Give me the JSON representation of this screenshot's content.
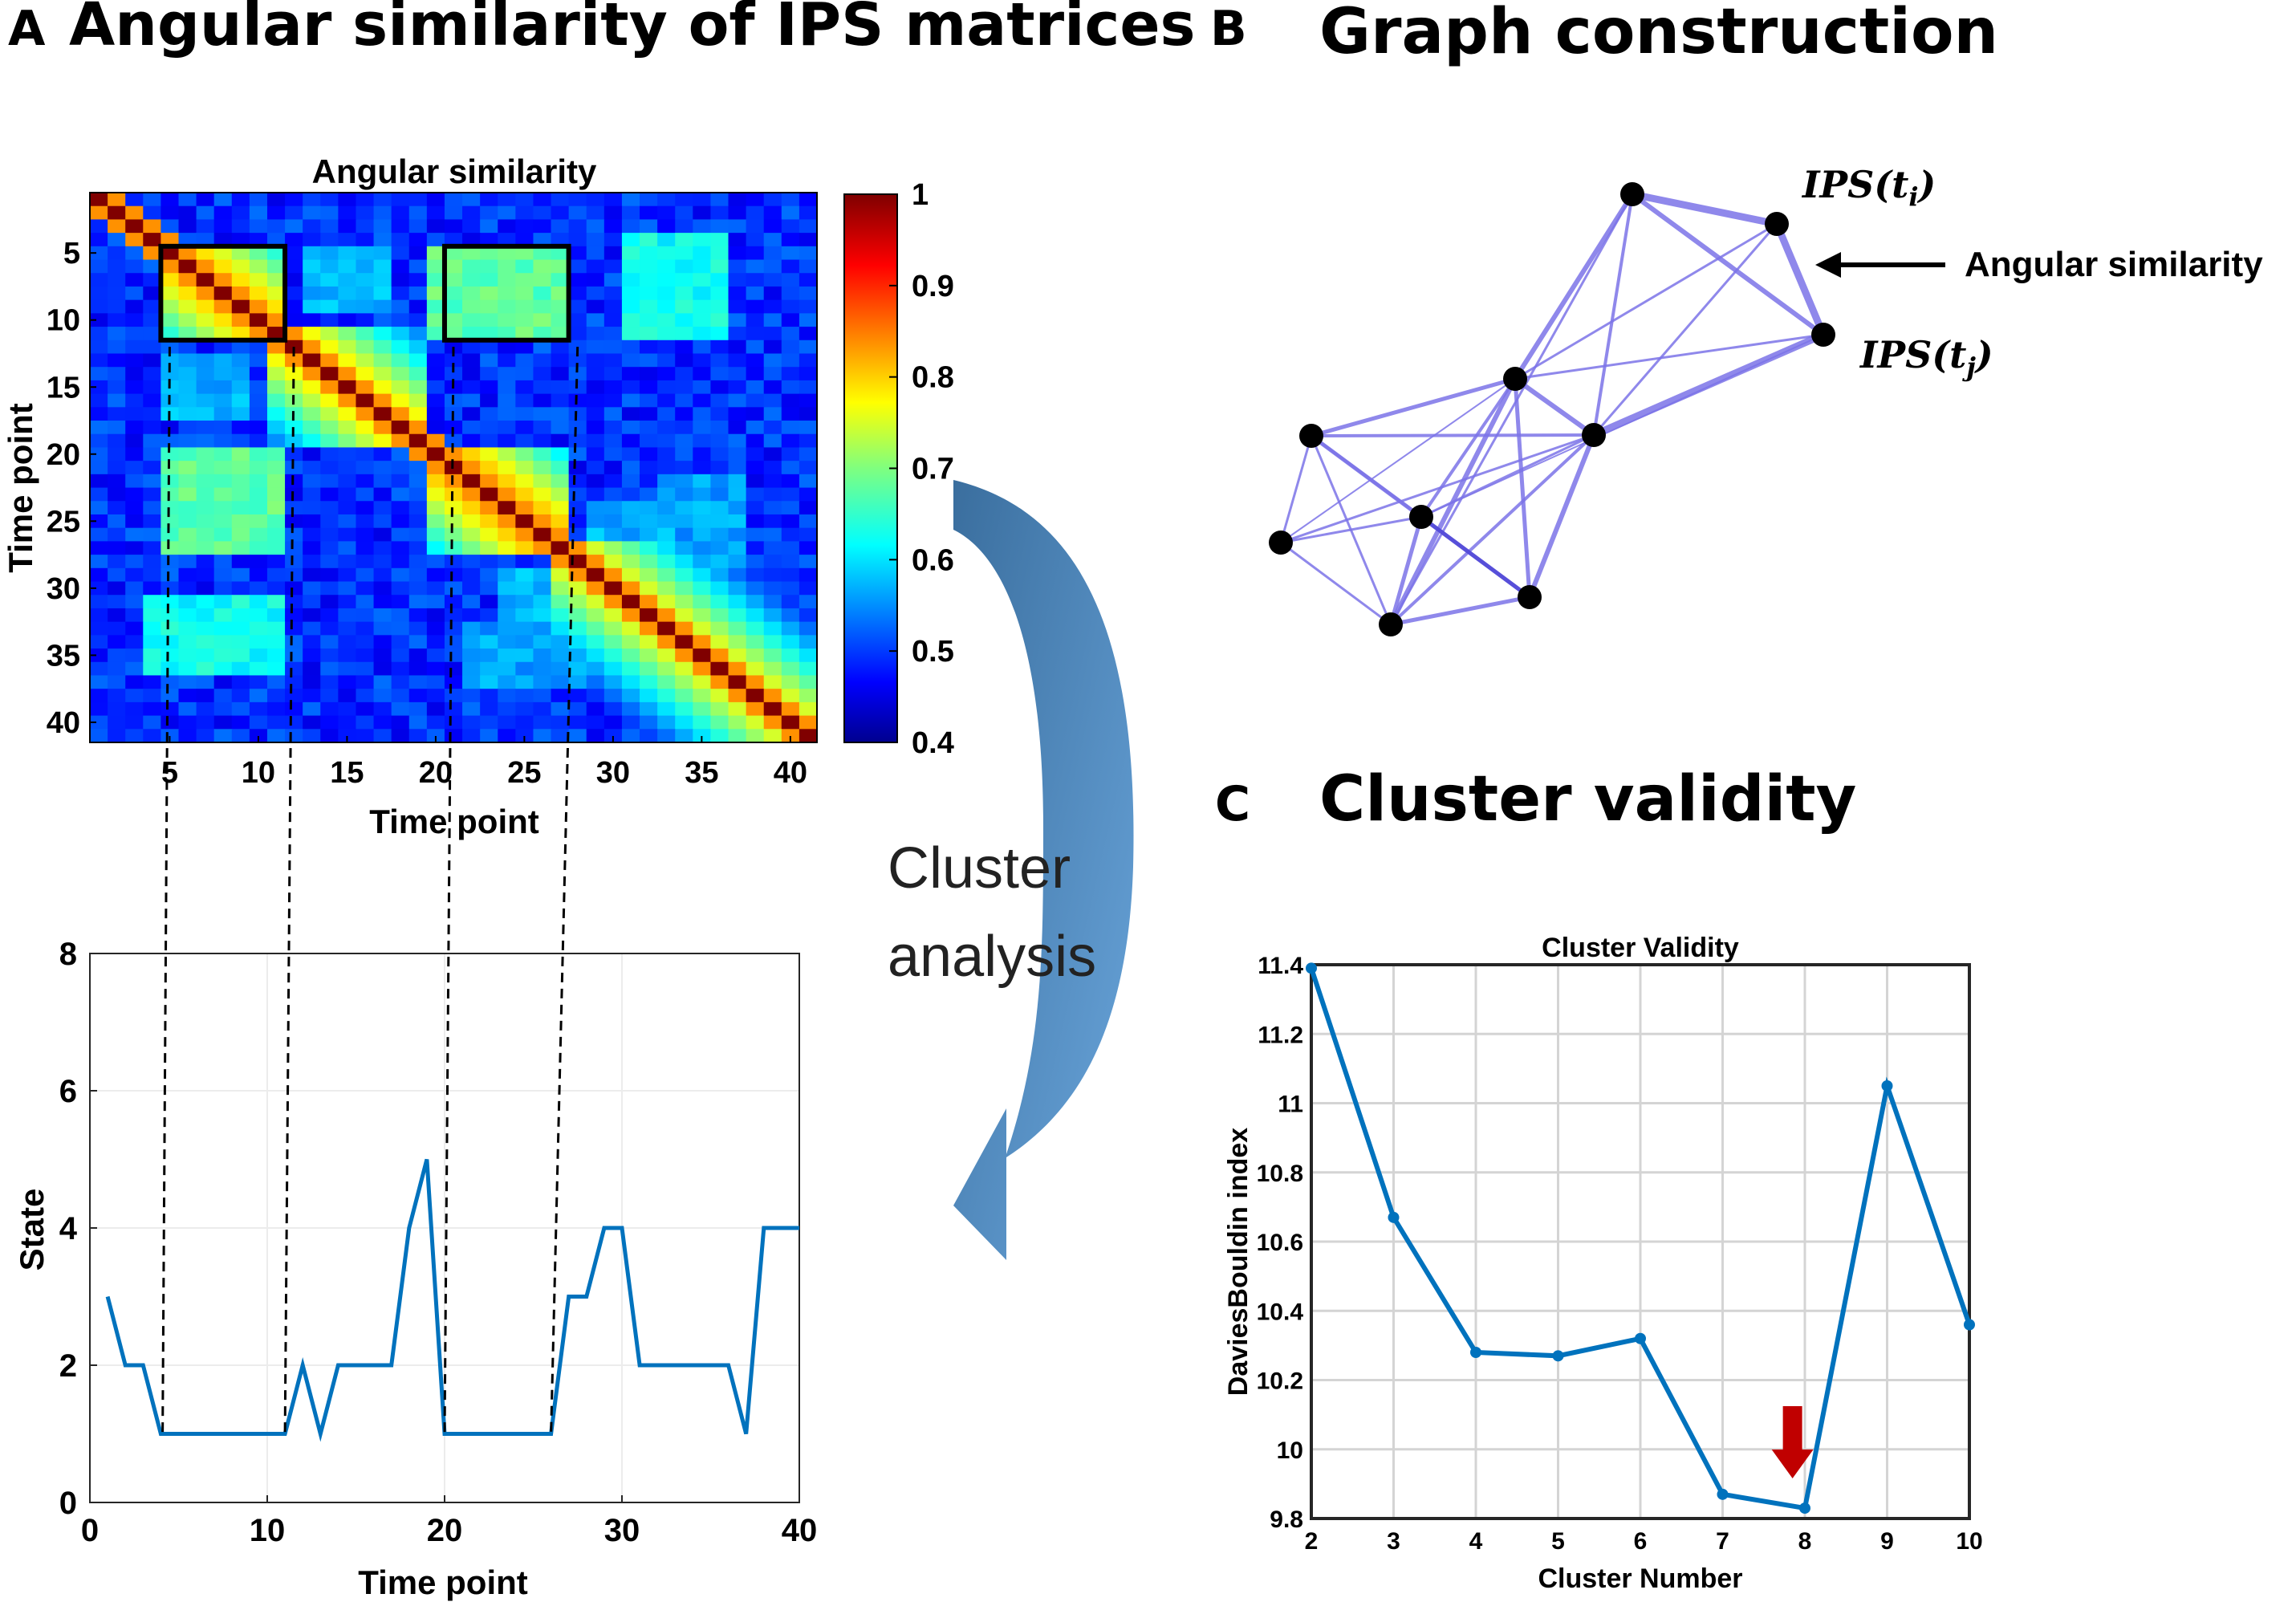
{
  "panels": {
    "a": {
      "letter": "A",
      "title": "Angular similarity of IPS matrices"
    },
    "b": {
      "letter": "B",
      "title": "Graph construction",
      "node_label_i": "IPS(t",
      "node_label_i_sub": "i",
      "node_label_j": "IPS(t",
      "node_label_j_sub": "j",
      "paren_close": ")",
      "edge_label": "Angular similarity"
    },
    "c": {
      "letter": "C",
      "title": "Cluster validity"
    }
  },
  "arrow_label": {
    "line1": "Cluster",
    "line2": "analysis"
  },
  "colors": {
    "line": "#0072BD",
    "graph_edge": "#7B73E8",
    "graph_edge_dark": "#4E45D6",
    "red_arrow": "#C00000",
    "curved_arrow": "#4A80B8"
  },
  "chart_data": [
    {
      "id": "heatmap",
      "type": "heatmap",
      "title": "Angular similarity",
      "xlabel": "Time point",
      "ylabel": "Time point",
      "size": 41,
      "xticks": [
        5,
        10,
        15,
        20,
        25,
        30,
        35,
        40
      ],
      "yticks": [
        5,
        10,
        15,
        20,
        25,
        30,
        35,
        40
      ],
      "clim": [
        0.4,
        1
      ],
      "colorbar_ticks": [
        "0.4",
        "0.5",
        "0.6",
        "0.7",
        "0.8",
        "0.9",
        "1"
      ],
      "colorbar_values": [
        0.4,
        0.5,
        0.6,
        0.7,
        0.8,
        0.9,
        1
      ],
      "diagonal_value": 1.0,
      "background_value": 0.5,
      "blocks": [
        {
          "rows": [
            5,
            11
          ],
          "cols": [
            5,
            11
          ],
          "value": 0.86
        },
        {
          "rows": [
            11,
            19
          ],
          "cols": [
            11,
            19
          ],
          "value": 0.84
        },
        {
          "rows": [
            20,
            27
          ],
          "cols": [
            20,
            27
          ],
          "value": 0.87
        },
        {
          "rows": [
            27,
            41
          ],
          "cols": [
            27,
            41
          ],
          "value": 0.82
        }
      ],
      "offdiag_patches": [
        {
          "rows": [
            5,
            11
          ],
          "cols": [
            20,
            27
          ],
          "value": 0.68
        },
        {
          "rows": [
            4,
            11
          ],
          "cols": [
            31,
            35
          ],
          "value": 0.62
        },
        {
          "rows": [
            22,
            27
          ],
          "cols": [
            5,
            11
          ],
          "value": 0.66
        },
        {
          "rows": [
            31,
            36
          ],
          "cols": [
            4,
            11
          ],
          "value": 0.63
        },
        {
          "rows": [
            13,
            17
          ],
          "cols": [
            5,
            9
          ],
          "value": 0.58
        },
        {
          "rows": [
            24,
            28
          ],
          "cols": [
            29,
            33
          ],
          "value": 0.58
        },
        {
          "rows": [
            33,
            37
          ],
          "cols": [
            22,
            28
          ],
          "value": 0.57
        }
      ],
      "highlight_boxes": [
        {
          "rows": [
            4.5,
            11.5
          ],
          "cols": [
            4.5,
            11.5
          ]
        },
        {
          "rows": [
            4.5,
            11.5
          ],
          "cols": [
            20.5,
            27.5
          ]
        }
      ]
    },
    {
      "id": "state",
      "type": "line",
      "xlabel": "Time point",
      "ylabel": "State",
      "xlim": [
        0,
        40
      ],
      "ylim": [
        0,
        8
      ],
      "xticks": [
        0,
        10,
        20,
        30,
        40
      ],
      "yticks": [
        0,
        2,
        4,
        6,
        8
      ],
      "x": [
        1,
        2,
        3,
        4,
        5,
        6,
        7,
        8,
        9,
        10,
        11,
        12,
        13,
        14,
        15,
        16,
        17,
        18,
        19,
        20,
        21,
        22,
        23,
        24,
        25,
        26,
        27,
        28,
        29,
        30,
        31,
        32,
        33,
        34,
        35,
        36,
        37,
        38,
        39,
        40
      ],
      "values": [
        3,
        2,
        2,
        1,
        1,
        1,
        1,
        1,
        1,
        1,
        1,
        2,
        1,
        2,
        2,
        2,
        2,
        4,
        5,
        1,
        1,
        1,
        1,
        1,
        1,
        1,
        3,
        3,
        4,
        4,
        2,
        2,
        2,
        2,
        2,
        2,
        1,
        4,
        4,
        4
      ],
      "dashed_guides": [
        4.1,
        11.0,
        20.0,
        26.0
      ]
    },
    {
      "id": "validity",
      "type": "line",
      "title": "Cluster Validity",
      "xlabel": "Cluster Number",
      "ylabel": "DaviesBouldin index",
      "xlim": [
        2,
        10
      ],
      "ylim": [
        9.8,
        11.4
      ],
      "xticks": [
        2,
        3,
        4,
        5,
        6,
        7,
        8,
        9,
        10
      ],
      "yticks": [
        9.8,
        10,
        10.2,
        10.4,
        10.6,
        10.8,
        11,
        11.2,
        11.4
      ],
      "x": [
        2,
        3,
        4,
        5,
        6,
        7,
        8,
        9,
        10
      ],
      "values": [
        11.39,
        10.67,
        10.28,
        10.27,
        10.32,
        9.87,
        9.83,
        11.05,
        10.36
      ],
      "annotation": {
        "x": 7.85,
        "note": "red arrow marks the minimum"
      }
    }
  ]
}
